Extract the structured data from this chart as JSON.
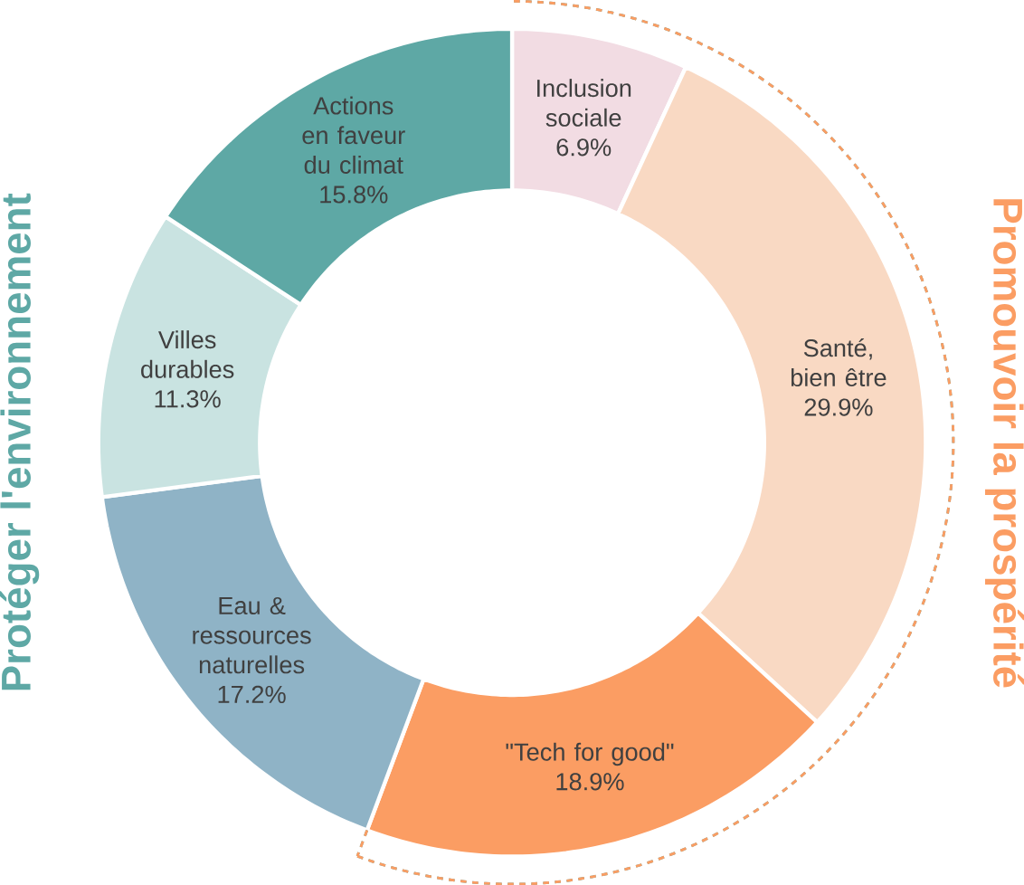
{
  "chart_data": {
    "type": "donut",
    "categories": [
      "Inclusion sociale",
      "Santé, bien être",
      "\"Tech for good\"",
      "Eau & ressources naturelles",
      "Villes durables",
      "Actions en faveur du climat"
    ],
    "values": [
      6.9,
      29.9,
      18.9,
      17.2,
      11.3,
      15.8
    ],
    "value_labels": [
      "6.9%",
      "29.9%",
      "18.9%",
      "17.2%",
      "11.3%",
      "15.8%"
    ],
    "colors": [
      "#f2dce3",
      "#f9d9c3",
      "#fb9d63",
      "#8fb3c6",
      "#c9e3e1",
      "#5ea8a5"
    ],
    "annotations": [
      "Protéger l'environnement",
      "Promouvoir la prospérité"
    ]
  }
}
